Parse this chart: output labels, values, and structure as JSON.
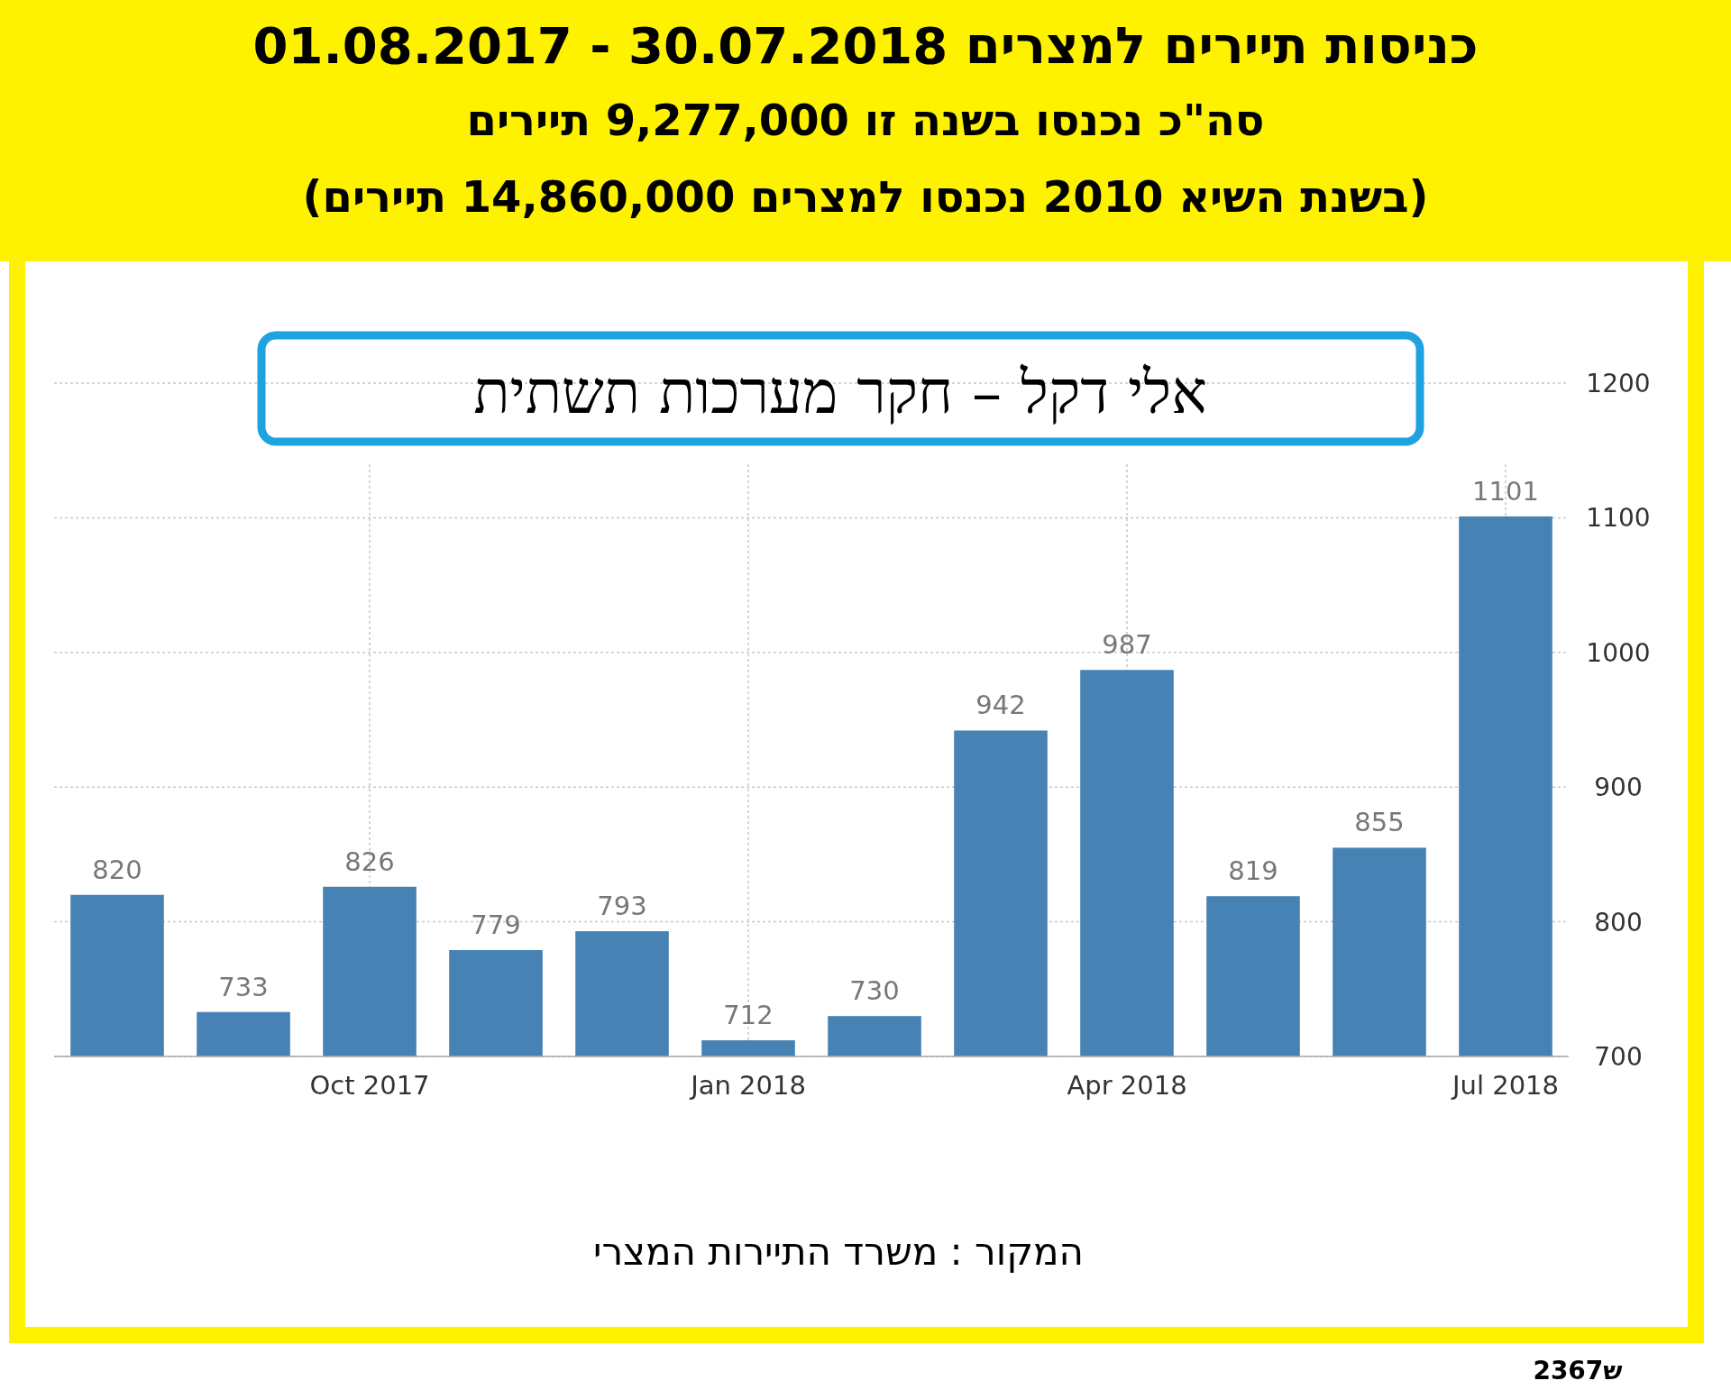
{
  "chart_data": {
    "type": "bar",
    "title": "כניסות תיירים למצרים 30.07.2018 - 01.08.2017",
    "subtitle": "סה\"כ נכנסו בשנה זו 9,277,000 תיירים",
    "annotations": [
      "(בשנת השיא 2010 נכנסו למצרים 14,860,000 תיירים)",
      "אלי דקל – חקר מערכות תשתית",
      "המקור : משרד התיירות המצרי",
      "ש2367"
    ],
    "categories": [
      null,
      null,
      "Oct 2017",
      null,
      null,
      "Jan 2018",
      null,
      null,
      "Apr 2018",
      null,
      null,
      "Jul 2018"
    ],
    "values": [
      820,
      733,
      826,
      779,
      793,
      712,
      730,
      942,
      987,
      819,
      855,
      1101
    ],
    "color": "#4682b4",
    "ylim": [
      700,
      1200
    ],
    "yticks": [
      700,
      800,
      900,
      1000,
      1100,
      1200
    ],
    "grid": true,
    "data_labels": true
  }
}
